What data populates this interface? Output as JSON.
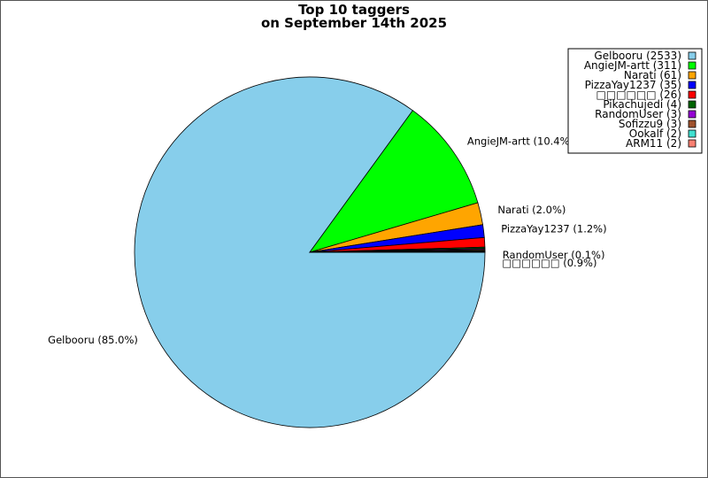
{
  "chart_data": {
    "type": "pie",
    "title": [
      "Top 10 taggers",
      "on September 14th 2025"
    ],
    "legend_position": "top-right",
    "start_angle_deg": 0,
    "direction": "clockwise",
    "slices": [
      {
        "name": "Gelbooru",
        "value": 2533,
        "color": "#87ceeb",
        "legend": "Gelbooru (2533)",
        "label": "Gelbooru (85.0%)"
      },
      {
        "name": "AngieJM-artt",
        "value": 311,
        "color": "#00ff00",
        "legend": "AngieJM-artt (311)",
        "label": "AngieJM-artt (10.4%)"
      },
      {
        "name": "Narati",
        "value": 61,
        "color": "#ffa500",
        "legend": "Narati (61)",
        "label": "Narati (2.0%)"
      },
      {
        "name": "PizzaYay1237",
        "value": 35,
        "color": "#0000ff",
        "legend": "PizzaYay1237 (35)",
        "label": "PizzaYay1237 (1.2%)"
      },
      {
        "name": "□□□□□□",
        "value": 26,
        "color": "#ff0000",
        "legend": "□□□□□□ (26)",
        "label": "□□□□□□ (0.9%)"
      },
      {
        "name": "Pikachujedi",
        "value": 4,
        "color": "#006400",
        "legend": "Pikachujedi (4)",
        "label": ""
      },
      {
        "name": "RandomUser",
        "value": 3,
        "color": "#9400d3",
        "legend": "RandomUser (3)",
        "label": "RandomUser (0.1%)"
      },
      {
        "name": "Sofizzu9",
        "value": 3,
        "color": "#a0522d",
        "legend": "Sofizzu9 (3)",
        "label": ""
      },
      {
        "name": "Ookalf",
        "value": 2,
        "color": "#40e0d0",
        "legend": "Ookalf (2)",
        "label": ""
      },
      {
        "name": "ARM11",
        "value": 2,
        "color": "#fa8072",
        "legend": "ARM11 (2)",
        "label": ""
      }
    ]
  }
}
